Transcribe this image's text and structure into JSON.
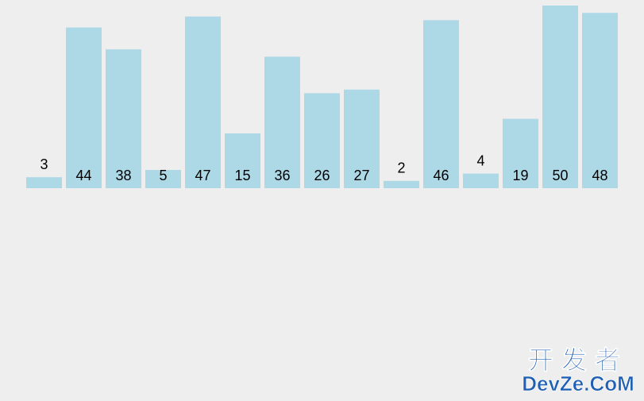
{
  "chart_data": {
    "type": "bar",
    "values": [
      3,
      44,
      38,
      5,
      47,
      15,
      36,
      26,
      27,
      2,
      46,
      4,
      19,
      50,
      48
    ],
    "color": "#add8e6"
  },
  "watermark": {
    "title": "开发者",
    "site": "DevZe.CoM"
  }
}
